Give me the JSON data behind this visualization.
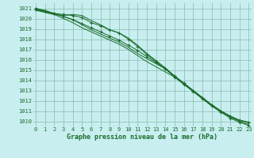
{
  "title": "Graphe pression niveau de la mer (hPa)",
  "hours": [
    0,
    1,
    2,
    3,
    4,
    5,
    6,
    7,
    8,
    9,
    10,
    11,
    12,
    13,
    14,
    15,
    16,
    17,
    18,
    19,
    20,
    21,
    22,
    23
  ],
  "ylim": [
    1009.5,
    1021.5
  ],
  "xlim": [
    -0.3,
    23.3
  ],
  "yticks": [
    1010,
    1011,
    1012,
    1013,
    1014,
    1015,
    1016,
    1017,
    1018,
    1019,
    1020,
    1021
  ],
  "bg_color": "#c8eef0",
  "grid_color": "#88bbaa",
  "line_color": "#1a6b2a",
  "lines": [
    [
      1021.0,
      1020.7,
      1020.5,
      1020.4,
      1020.3,
      1020.1,
      1019.6,
      1019.3,
      1018.9,
      1018.6,
      1018.0,
      1017.3,
      1016.5,
      1015.8,
      1015.1,
      1014.3,
      1013.6,
      1012.9,
      1012.2,
      1011.5,
      1010.9,
      1010.3,
      1009.9,
      1009.6
    ],
    [
      1020.8,
      1020.6,
      1020.4,
      1020.3,
      1020.4,
      1020.3,
      1019.8,
      1019.4,
      1018.9,
      1018.6,
      1018.1,
      1017.4,
      1016.6,
      1015.9,
      1015.2,
      1014.4,
      1013.7,
      1013.0,
      1012.3,
      1011.6,
      1011.0,
      1010.5,
      1010.1,
      1009.9
    ],
    [
      1020.9,
      1020.7,
      1020.5,
      1020.2,
      1019.9,
      1019.5,
      1019.1,
      1018.7,
      1018.3,
      1017.9,
      1017.4,
      1016.9,
      1016.3,
      1015.7,
      1015.1,
      1014.4,
      1013.7,
      1013.0,
      1012.3,
      1011.6,
      1011.0,
      1010.5,
      1010.1,
      1009.9
    ],
    [
      1021.0,
      1020.8,
      1020.5,
      1020.2,
      1019.9,
      1019.4,
      1018.9,
      1018.5,
      1018.1,
      1017.7,
      1017.2,
      1016.6,
      1016.1,
      1015.6,
      1015.1,
      1014.4,
      1013.7,
      1013.0,
      1012.3,
      1011.6,
      1011.0,
      1010.5,
      1010.1,
      1009.9
    ],
    [
      1020.9,
      1020.6,
      1020.4,
      1020.0,
      1019.6,
      1019.1,
      1018.7,
      1018.3,
      1017.9,
      1017.5,
      1017.0,
      1016.4,
      1015.8,
      1015.3,
      1014.8,
      1014.3,
      1013.6,
      1012.9,
      1012.2,
      1011.5,
      1010.9,
      1010.4,
      1010.0,
      1009.7
    ]
  ],
  "marker_indices": [
    0,
    2
  ],
  "tick_fontsize": 5.0,
  "label_fontsize": 6.0
}
